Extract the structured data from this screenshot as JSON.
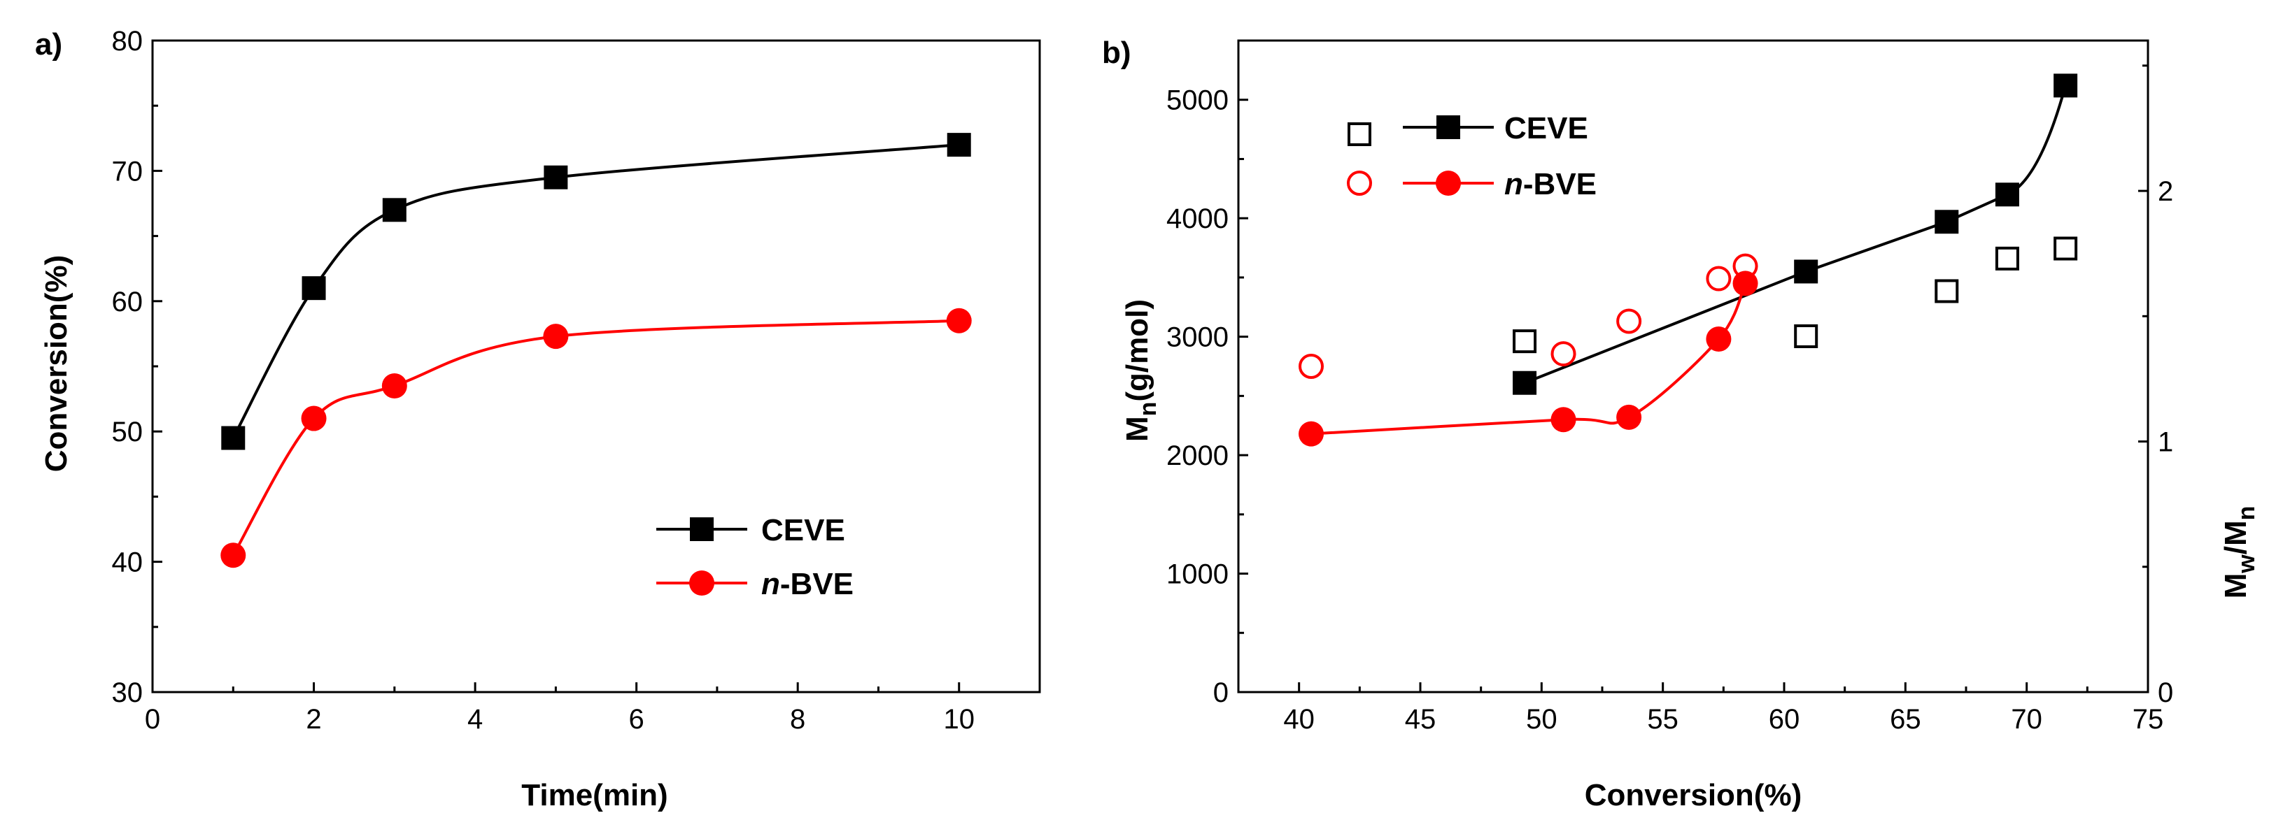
{
  "chart_data": [
    {
      "panel_label": "a)",
      "type": "line",
      "xlabel": "Time(min)",
      "ylabel": "Conversion(%)",
      "xlim": [
        0,
        11
      ],
      "ylim": [
        30,
        80
      ],
      "xticks": [
        "0",
        "2",
        "4",
        "6",
        "8",
        "10"
      ],
      "yticks": [
        "30",
        "40",
        "50",
        "60",
        "70",
        "80"
      ],
      "legend_position": "bottom-right",
      "series": [
        {
          "name": "CEVE",
          "prefix": "",
          "suffix": "CEVE",
          "marker": "square",
          "color": "#000000",
          "x": [
            1,
            2,
            3,
            5,
            10
          ],
          "y": [
            49.5,
            61,
            67,
            69.5,
            72
          ]
        },
        {
          "name": "n-BVE",
          "prefix": "n",
          "suffix": "-BVE",
          "marker": "circle",
          "color": "#ff0000",
          "x": [
            1,
            2,
            3,
            5,
            10
          ],
          "y": [
            40.5,
            51,
            53.5,
            57.3,
            58.5
          ]
        }
      ]
    },
    {
      "panel_label": "b)",
      "type": "line",
      "xlabel": "Conversion(%)",
      "ylabel_main": "M",
      "ylabel_sub": "n",
      "ylabel_rest": "(g/mol)",
      "y2label_m1": "M",
      "y2label_sub1": "w",
      "y2label_mid": "/M",
      "y2label_sub2": "n",
      "xlim": [
        37.5,
        75
      ],
      "ylim": [
        0,
        5500
      ],
      "y2lim": [
        0,
        2.6
      ],
      "xticks": [
        "40",
        "45",
        "50",
        "55",
        "60",
        "65",
        "70",
        "75"
      ],
      "yticks": [
        "0",
        "1000",
        "2000",
        "3000",
        "4000",
        "5000"
      ],
      "y2ticks": [
        "0",
        "1",
        "2"
      ],
      "legend_position": "top-left",
      "series": [
        {
          "name": "CEVE",
          "prefix": "",
          "suffix": "CEVE",
          "axis": "left",
          "marker": "square",
          "color": "#000000",
          "x": [
            49.3,
            60.9,
            66.7,
            69.2,
            71.6
          ],
          "y": [
            2610,
            3550,
            3970,
            4200,
            5120
          ]
        },
        {
          "name": "n-BVE",
          "prefix": "n",
          "suffix": "-BVE",
          "axis": "left",
          "marker": "circle",
          "color": "#ff0000",
          "x": [
            40.5,
            50.9,
            53.6,
            57.3,
            58.4
          ],
          "y": [
            2180,
            2300,
            2320,
            2980,
            3450
          ]
        },
        {
          "name": "CEVE Mw/Mn",
          "axis": "right",
          "marker": "open-square",
          "color": "#000000",
          "x": [
            49.3,
            60.9,
            66.7,
            69.2,
            71.6
          ],
          "y": [
            1.4,
            1.42,
            1.6,
            1.73,
            1.77
          ]
        },
        {
          "name": "n-BVE Mw/Mn",
          "axis": "right",
          "marker": "open-circle",
          "color": "#ff0000",
          "x": [
            40.5,
            50.9,
            53.6,
            57.3,
            58.4
          ],
          "y": [
            1.3,
            1.35,
            1.48,
            1.65,
            1.7
          ]
        }
      ]
    }
  ]
}
